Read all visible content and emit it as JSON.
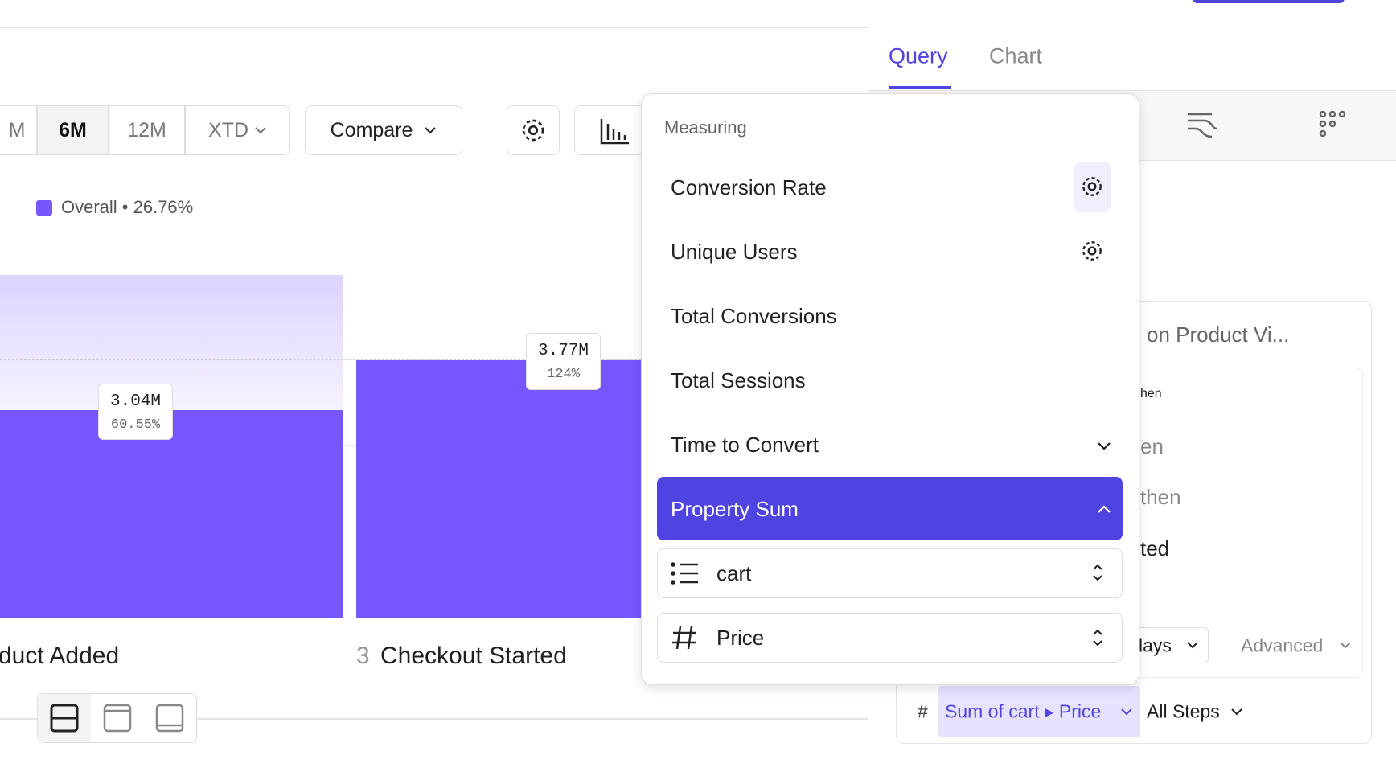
{
  "toolbar": {
    "ranges": [
      "M",
      "6M",
      "12M",
      "XTD"
    ],
    "compare": "Compare"
  },
  "legend": {
    "label": "Overall • 26.76%"
  },
  "bars": [
    {
      "value_label": "3.04M",
      "percent_label": "60.55%",
      "step_name": "duct Added"
    },
    {
      "value_label": "3.77M",
      "percent_label": "124%",
      "step_number": "3",
      "step_name": "Checkout Started"
    }
  ],
  "tabs": [
    "Query",
    "Chart"
  ],
  "query_panel": {
    "event_title": "on Product Vi...",
    "steps": [
      "hen",
      "en",
      "then",
      "ted"
    ],
    "window": "lays",
    "advanced": "Advanced",
    "measure_prefix": "#",
    "measure": "Sum of cart ▸ Price",
    "scope": "All Steps"
  },
  "dropdown": {
    "heading": "Measuring",
    "items": [
      "Conversion Rate",
      "Unique Users",
      "Total Conversions",
      "Total Sessions",
      "Time to Convert",
      "Property Sum"
    ],
    "property_list": "cart",
    "property_field": "Price"
  }
}
